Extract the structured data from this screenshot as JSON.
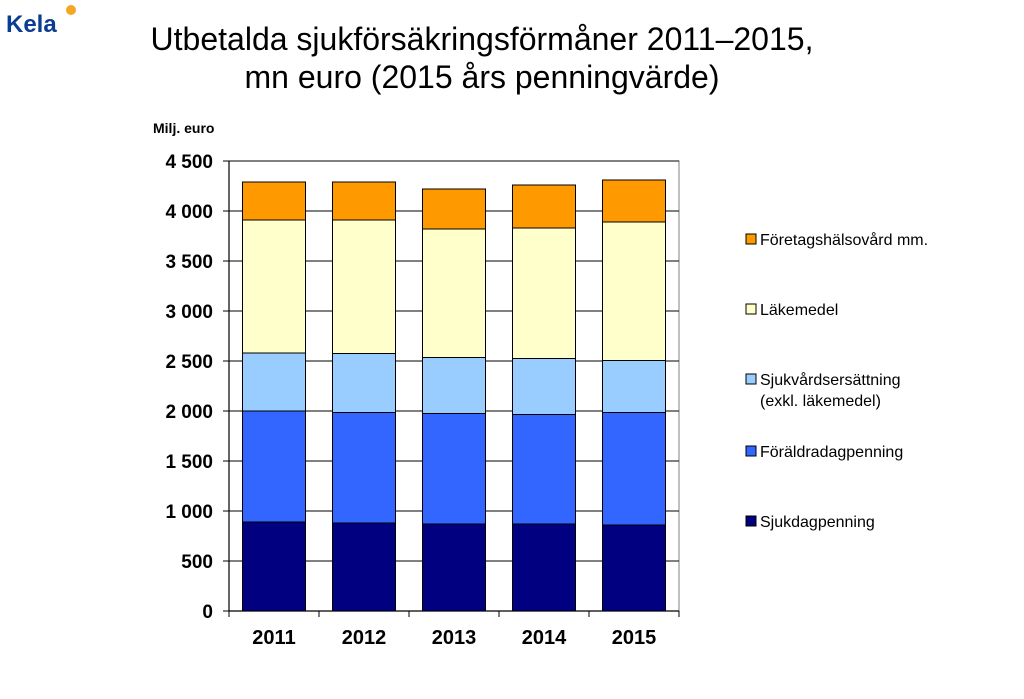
{
  "logo": {
    "text": "Kela"
  },
  "header": {
    "title_line1": "Utbetalda sjukförsäkringsförmåner 2011–2015,",
    "title_line2": "mn euro (2015 års penningvärde)"
  },
  "chart_data": {
    "type": "bar",
    "stacked": true,
    "ylabel": "Milj. euro",
    "ylim": [
      0,
      4500
    ],
    "yticks": [
      0,
      500,
      1000,
      1500,
      2000,
      2500,
      3000,
      3500,
      4000,
      4500
    ],
    "ytick_labels": [
      "0",
      "500",
      "1 000",
      "1 500",
      "2 000",
      "2 500",
      "3 000",
      "3 500",
      "4 000",
      "4 500"
    ],
    "categories": [
      "2011",
      "2012",
      "2013",
      "2014",
      "2015"
    ],
    "grid": true,
    "legend_position": "right",
    "series": [
      {
        "name": "Sjukdagpenning",
        "color": "#000080",
        "values": [
          890,
          880,
          870,
          870,
          860
        ]
      },
      {
        "name": "Föräldradagpenning",
        "color": "#3366ff",
        "values": [
          1110,
          1105,
          1105,
          1095,
          1125
        ]
      },
      {
        "name": "Sjukvårdsersättning\n(exkl. läkemedel)",
        "color": "#99ccff",
        "values": [
          580,
          590,
          560,
          560,
          520
        ]
      },
      {
        "name": "Läkemedel",
        "color": "#ffffcc",
        "values": [
          1330,
          1335,
          1285,
          1305,
          1385
        ]
      },
      {
        "name": "Företagshälsovård mm.",
        "color": "#ff9900",
        "values": [
          380,
          380,
          400,
          430,
          420
        ]
      }
    ]
  }
}
